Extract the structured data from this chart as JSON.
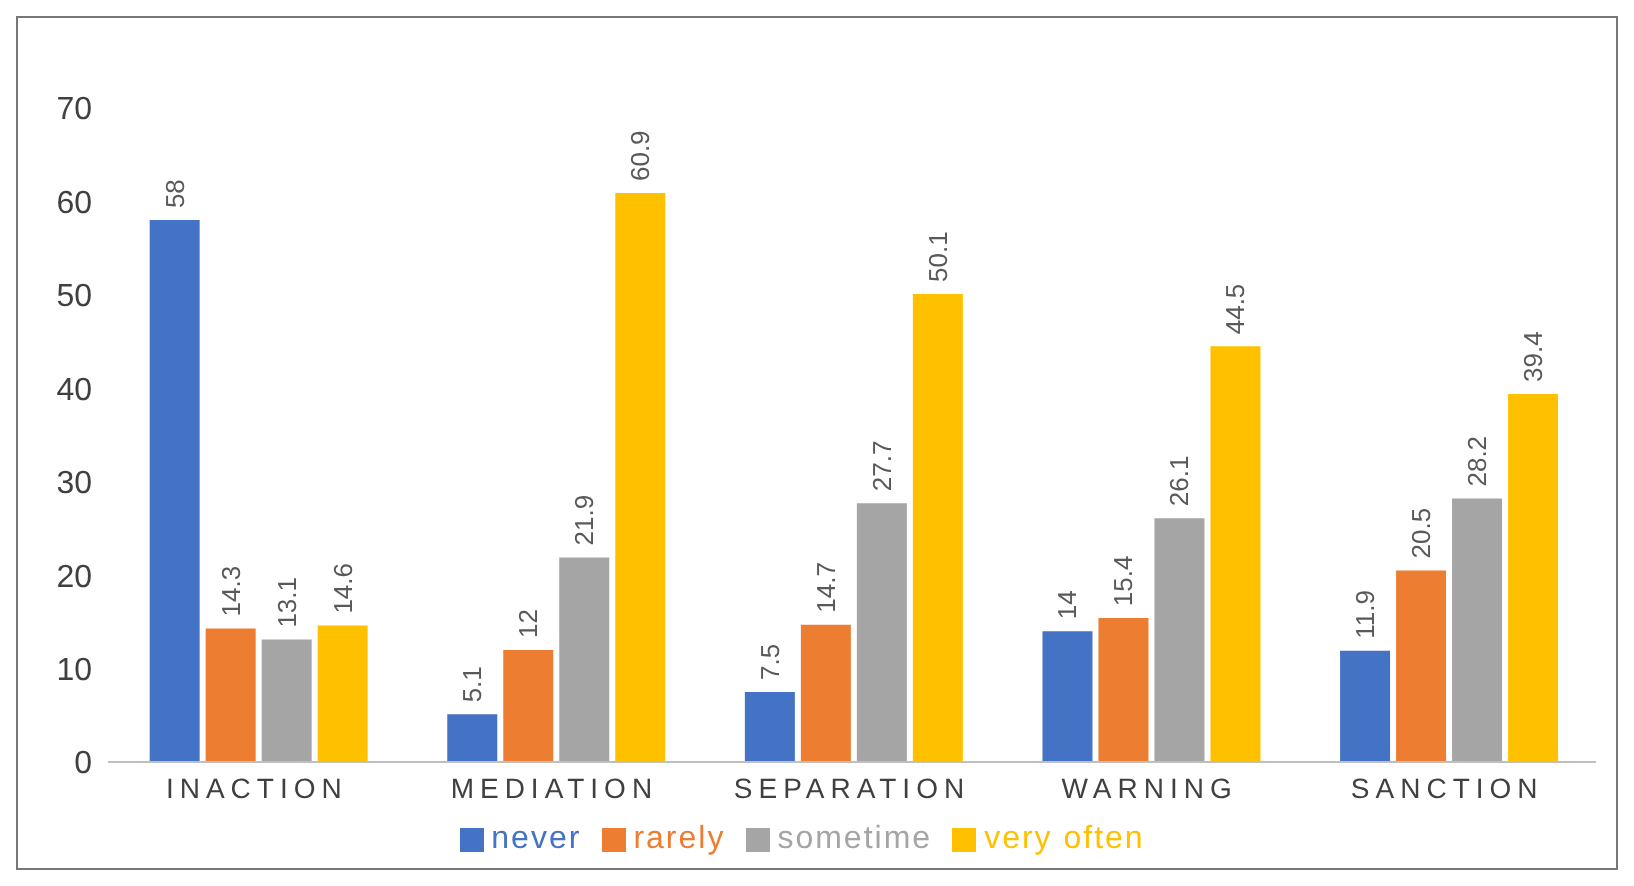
{
  "chart_data": {
    "type": "bar",
    "categories": [
      "INACTION",
      "MEDIATION",
      "SEPARATION",
      "WARNING",
      "SANCTION"
    ],
    "series": [
      {
        "name": "never",
        "color": "#4472c4",
        "values": [
          58,
          5.1,
          7.5,
          14,
          11.9
        ]
      },
      {
        "name": "rarely",
        "color": "#ed7d31",
        "values": [
          14.3,
          12,
          14.7,
          15.4,
          20.5
        ]
      },
      {
        "name": "sometime",
        "color": "#a5a5a5",
        "values": [
          13.1,
          21.9,
          27.7,
          26.1,
          28.2
        ]
      },
      {
        "name": "very often",
        "color": "#ffc000",
        "values": [
          14.6,
          60.9,
          50.1,
          44.5,
          39.4
        ]
      }
    ],
    "ylim": [
      0,
      70
    ],
    "yticks": [
      0,
      10,
      20,
      30,
      40,
      50,
      60,
      70
    ],
    "grid": false,
    "legend": "bottom",
    "data_labels": true
  }
}
